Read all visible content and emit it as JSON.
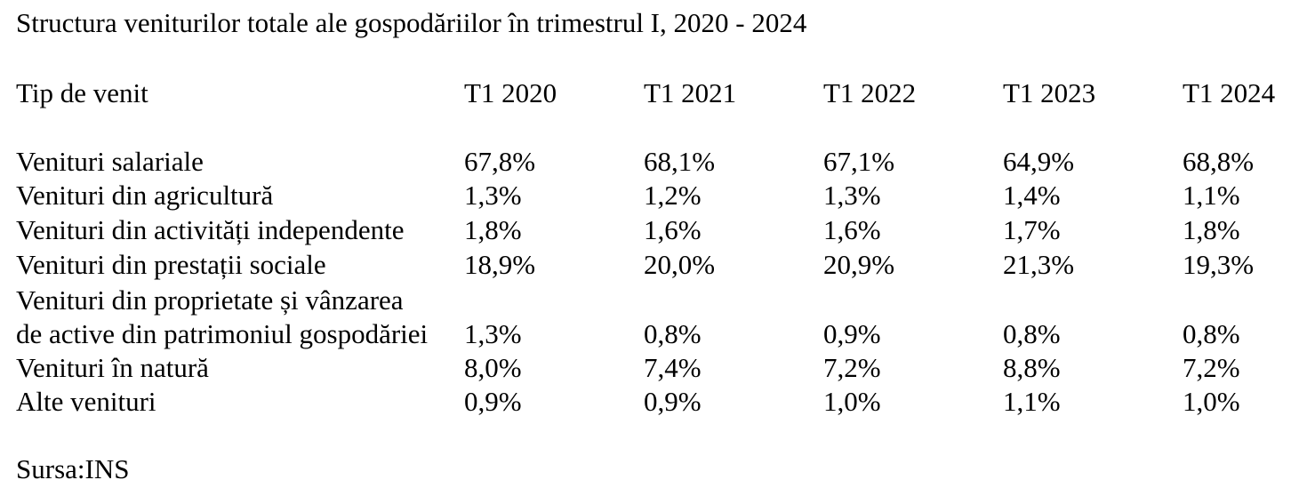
{
  "title": "Structura veniturilor totale ale gospodăriilor în trimestrul I, 2020 - 2024",
  "table": {
    "headers": [
      "Tip de venit",
      "T1 2020",
      "T1 2021",
      "T1 2022",
      "T1 2023",
      "T1 2024"
    ],
    "rows": [
      {
        "label_lines": [
          "Venituri salariale"
        ],
        "values": [
          "67,8%",
          "68,1%",
          "67,1%",
          "64,9%",
          "68,8%"
        ]
      },
      {
        "label_lines": [
          "Venituri din agricultură"
        ],
        "values": [
          "1,3%",
          "1,2%",
          "1,3%",
          "1,4%",
          "1,1%"
        ]
      },
      {
        "label_lines": [
          "Venituri din activități independente"
        ],
        "values": [
          "1,8%",
          "1,6%",
          "1,6%",
          "1,7%",
          "1,8%"
        ]
      },
      {
        "label_lines": [
          "Venituri din prestații sociale"
        ],
        "values": [
          "18,9%",
          "20,0%",
          "20,9%",
          "21,3%",
          "19,3%"
        ]
      },
      {
        "label_lines": [
          "Venituri din proprietate și vânzarea",
          "de active din patrimoniul gospodăriei"
        ],
        "values": [
          "1,3%",
          "0,8%",
          "0,9%",
          "0,8%",
          "0,8%"
        ]
      },
      {
        "label_lines": [
          "Venituri în natură"
        ],
        "values": [
          "8,0%",
          "7,4%",
          "7,2%",
          "8,8%",
          "7,2%"
        ]
      },
      {
        "label_lines": [
          "Alte venituri"
        ],
        "values": [
          "0,9%",
          "0,9%",
          "1,0%",
          "1,1%",
          "1,0%"
        ]
      }
    ]
  },
  "source": "Sursa:INS"
}
